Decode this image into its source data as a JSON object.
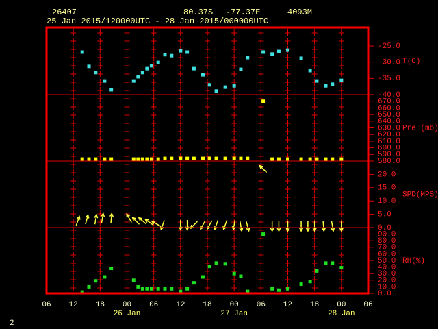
{
  "header": {
    "station": "26407",
    "lat": "80.37S",
    "lon": "-77.37E",
    "elev": "4093M",
    "period": "25 Jan 2015/120000UTC - 28 Jan 2015/000000UTC",
    "page": "2"
  },
  "chart_data": {
    "type": "panels",
    "xlim": [
      6,
      78
    ],
    "xticks": [
      {
        "value": 6,
        "label": "06"
      },
      12,
      18,
      {
        "value": 24,
        "label": "00"
      },
      {
        "value": 30,
        "label": "06"
      },
      {
        "value": 36,
        "label": "12"
      },
      {
        "value": 42,
        "label": "18"
      },
      {
        "value": 48,
        "label": "00"
      },
      {
        "value": 54,
        "label": "06"
      },
      {
        "value": 60,
        "label": "12"
      },
      {
        "value": 66,
        "label": "18"
      },
      {
        "value": 72,
        "label": "00"
      },
      {
        "value": 78,
        "label": "06"
      }
    ],
    "date_labels": [
      {
        "value": 24,
        "label": "26 Jan"
      },
      {
        "value": 48,
        "label": "27 Jan"
      },
      {
        "value": 72,
        "label": "28 Jan"
      }
    ],
    "grid": true,
    "panels": [
      {
        "type": "scatter",
        "ylabel": "T(C)",
        "color": "#40e0e0",
        "ylim": [
          -40,
          -19.3
        ],
        "yticks": [
          {
            "value": -40,
            "label": "-40.0"
          },
          {
            "value": -35,
            "label": "-35.0"
          },
          {
            "value": -30,
            "label": "-30.0"
          },
          {
            "value": -25,
            "label": "-25.0"
          }
        ],
        "x": [
          14,
          15.5,
          17,
          19,
          20.5,
          25.5,
          26.5,
          27.5,
          28.5,
          29.5,
          31,
          32.5,
          34,
          36,
          37.5,
          39,
          41,
          42.5,
          44,
          46,
          48,
          49.5,
          51,
          54.5,
          56.5,
          58,
          60,
          63,
          65,
          66.5,
          68.5,
          70,
          72
        ],
        "values": [
          -26.9,
          -31.3,
          -33.2,
          -35.8,
          -38.5,
          -35.8,
          -34.5,
          -33.2,
          -32.0,
          -31.1,
          -30.1,
          -27.7,
          -28.0,
          -26.5,
          -26.9,
          -32.0,
          -33.9,
          -37.0,
          -38.9,
          -37.7,
          -37.3,
          -32.2,
          -28.6,
          -26.9,
          -27.5,
          -26.7,
          -26.3,
          -28.8,
          -32.6,
          -35.8,
          -37.3,
          -36.8,
          -35.6
        ]
      },
      {
        "type": "scatter",
        "ylabel": "Pre (mb)",
        "color": "#ffff00",
        "ylim": [
          580,
          680
        ],
        "yticks": [
          {
            "value": 580,
            "label": "580.0"
          },
          {
            "value": 590,
            "label": "590.0"
          },
          {
            "value": 600,
            "label": "600.0"
          },
          {
            "value": 610,
            "label": "610.0"
          },
          {
            "value": 620,
            "label": "620.0"
          },
          {
            "value": 630,
            "label": "630.0"
          },
          {
            "value": 640,
            "label": "640.0"
          },
          {
            "value": 650,
            "label": "650.0"
          },
          {
            "value": 660,
            "label": "660.0"
          },
          {
            "value": 670,
            "label": "670.0"
          }
        ],
        "x": [
          14,
          15.5,
          17,
          19,
          20.5,
          25.5,
          26.5,
          27.5,
          28.5,
          29.5,
          31,
          32.5,
          34,
          36,
          37.5,
          39,
          41,
          42.5,
          44,
          46,
          48,
          49.5,
          51,
          54.5,
          56.5,
          58,
          60,
          63,
          65,
          66.5,
          68.5,
          70,
          72
        ],
        "values": [
          583,
          583,
          583,
          583,
          583,
          583,
          583,
          583,
          583,
          583,
          583,
          584,
          584,
          584,
          584,
          584,
          584,
          584,
          584,
          584,
          584,
          584,
          584,
          670,
          583,
          583,
          583,
          583,
          583,
          583,
          583,
          583,
          583
        ]
      },
      {
        "type": "vector",
        "ylabel": "SPD(MPS)",
        "color": "#ffff40",
        "ylim": [
          0,
          25
        ],
        "yticks": [
          {
            "value": 0,
            "label": "0.0"
          },
          {
            "value": 5,
            "label": "5.0"
          },
          {
            "value": 10,
            "label": "10.0"
          },
          {
            "value": 15,
            "label": "15.0"
          },
          {
            "value": 20,
            "label": "20.0"
          }
        ],
        "x": [
          13,
          15,
          17,
          18.5,
          20.5,
          24.5,
          26,
          27.5,
          29,
          30.5,
          32,
          36,
          37.5,
          39,
          41,
          42.5,
          44,
          46,
          48,
          49.5,
          51,
          54.5,
          56.5,
          58,
          60,
          63,
          64.5,
          66,
          68,
          70,
          72
        ],
        "values": [
          2.5,
          3,
          3,
          3.5,
          3.5,
          3.5,
          2.5,
          2.5,
          2,
          1.5,
          1,
          1,
          1,
          1,
          1,
          1,
          1,
          1,
          1,
          0.5,
          0.5,
          22,
          0.5,
          0.5,
          0.5,
          0.5,
          0.5,
          0.5,
          0.5,
          0.5,
          0.5
        ],
        "directions": [
          20,
          15,
          10,
          10,
          5,
          330,
          315,
          310,
          305,
          300,
          200,
          180,
          180,
          225,
          210,
          210,
          200,
          200,
          190,
          170,
          165,
          315,
          180,
          180,
          180,
          180,
          180,
          180,
          175,
          170,
          180
        ]
      },
      {
        "type": "scatter",
        "ylabel": "RH(%)",
        "color": "#20e020",
        "ylim": [
          0,
          100
        ],
        "yticks": [
          {
            "value": 0,
            "label": "0.0"
          },
          {
            "value": 10,
            "label": "10.0"
          },
          {
            "value": 20,
            "label": "20.0"
          },
          {
            "value": 30,
            "label": "30.0"
          },
          {
            "value": 40,
            "label": "40.0"
          },
          {
            "value": 50,
            "label": "50.0"
          },
          {
            "value": 60,
            "label": "60.0"
          },
          {
            "value": 70,
            "label": "70.0"
          },
          {
            "value": 80,
            "label": "80.0"
          },
          {
            "value": 90,
            "label": "90.0"
          }
        ],
        "x": [
          14,
          15.5,
          17,
          19,
          20.5,
          25.5,
          26.5,
          27.5,
          28.5,
          29.5,
          31,
          32.5,
          34,
          36,
          37.5,
          39,
          41,
          42.5,
          44,
          46,
          48,
          49.5,
          51,
          54.5,
          56.5,
          58,
          60,
          63,
          65,
          66.5,
          68.5,
          70,
          72
        ],
        "values": [
          2,
          10,
          19,
          25,
          38,
          20,
          10,
          7,
          7,
          7,
          7,
          7,
          7,
          3,
          7,
          16,
          25,
          41,
          46,
          45,
          30,
          26,
          3,
          90,
          7,
          5,
          7,
          14,
          18,
          34,
          46,
          46,
          39
        ]
      }
    ]
  }
}
